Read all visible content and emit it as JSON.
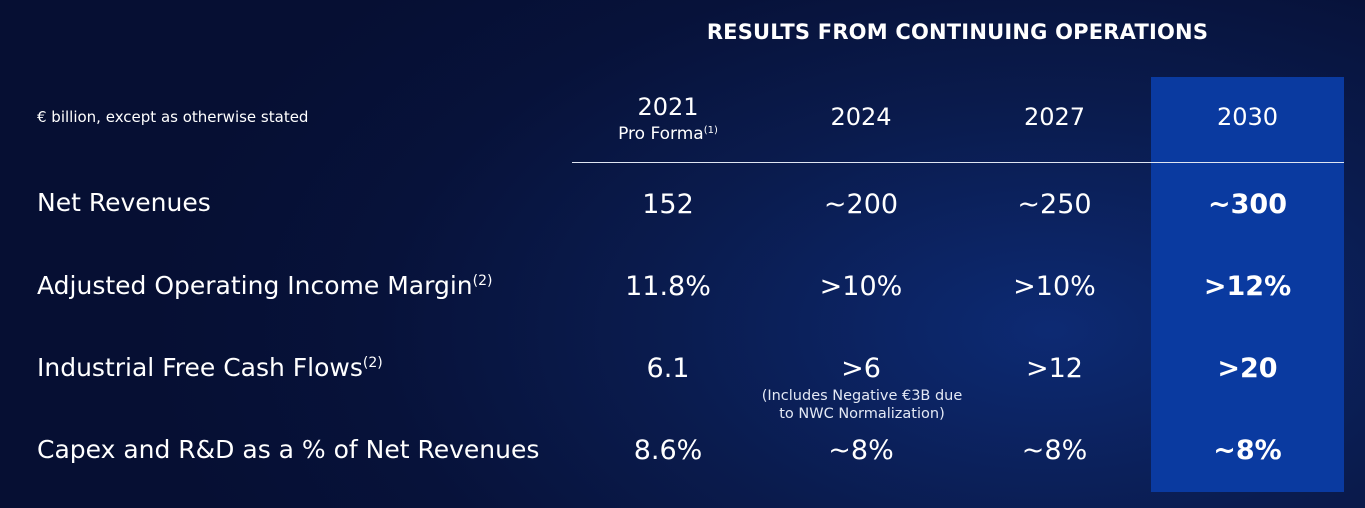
{
  "chart_data": {
    "type": "table",
    "title": "RESULTS FROM CONTINUING OPERATIONS",
    "units_note": "€ billion, except as otherwise stated",
    "columns": [
      {
        "year": "2021",
        "sub": "Pro Forma",
        "footnote": "(1)"
      },
      {
        "year": "2024"
      },
      {
        "year": "2027"
      },
      {
        "year": "2030",
        "highlighted": true
      }
    ],
    "rows": [
      {
        "label": "Net Revenues",
        "footnote": "",
        "values": [
          "152",
          "~200",
          "~250",
          "~300"
        ]
      },
      {
        "label": "Adjusted Operating Income Margin",
        "footnote": "(2)",
        "values": [
          "11.8%",
          ">10%",
          ">10%",
          ">12%"
        ]
      },
      {
        "label": "Industrial Free Cash Flows",
        "footnote": "(2)",
        "values": [
          "6.1",
          ">6",
          ">12",
          ">20"
        ],
        "note_line1": "(Includes Negative €3B due",
        "note_line2": "to NWC Normalization)"
      },
      {
        "label": "Capex and R&D as a % of Net Revenues",
        "footnote": "",
        "values": [
          "8.6%",
          "~8%",
          "~8%",
          "~8%"
        ]
      }
    ],
    "highlight_color": "#0a3aa0",
    "background_color": "#07123a"
  }
}
